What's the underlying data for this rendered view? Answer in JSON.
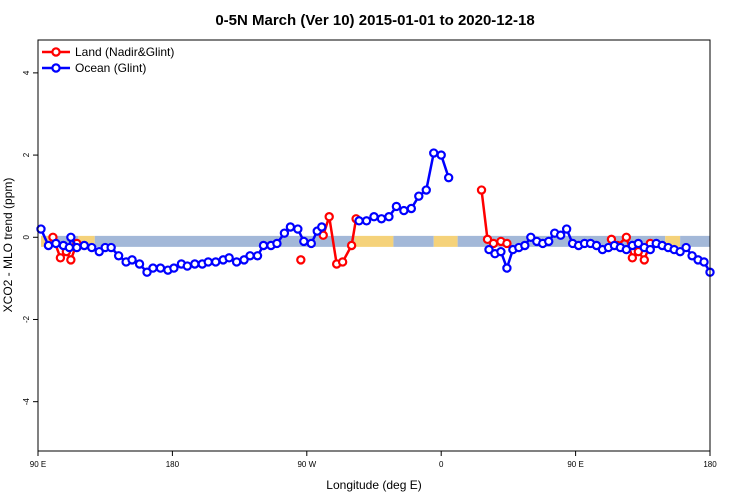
{
  "chart_data": {
    "type": "line",
    "title": "0-5N March (Ver 10)   2015-01-01 to 2020-12-18",
    "xlabel": "Longitude (deg E)",
    "ylabel": "XCO2 - MLO trend (ppm)",
    "x_ticks": [
      {
        "value": 90,
        "label": "90 E"
      },
      {
        "value": 180,
        "label": "180"
      },
      {
        "value": 270,
        "label": "90 W"
      },
      {
        "value": 360,
        "label": "0"
      },
      {
        "value": 450,
        "label": "90 E"
      },
      {
        "value": 540,
        "label": "180"
      }
    ],
    "y_ticks": [
      -4,
      -2,
      0,
      2,
      4
    ],
    "xlim": [
      90,
      540
    ],
    "ylim": [
      -5.2,
      4.8
    ],
    "legend_position": "top-left",
    "band": {
      "y": -0.1,
      "colors": {
        "ocean": "#a3b8d8",
        "land": "#f5d27a"
      },
      "segments": [
        {
          "type": "land",
          "x": [
            92,
            100
          ]
        },
        {
          "type": "ocean",
          "x": [
            100,
            117
          ]
        },
        {
          "type": "land",
          "x": [
            117,
            128
          ]
        },
        {
          "type": "ocean",
          "x": [
            128,
            302
          ]
        },
        {
          "type": "land",
          "x": [
            302,
            328
          ]
        },
        {
          "type": "ocean",
          "x": [
            328,
            355
          ]
        },
        {
          "type": "land",
          "x": [
            355,
            371
          ]
        },
        {
          "type": "ocean",
          "x": [
            371,
            510
          ]
        },
        {
          "type": "land",
          "x": [
            510,
            520
          ]
        },
        {
          "type": "ocean",
          "x": [
            520,
            540
          ]
        }
      ]
    },
    "series": [
      {
        "name": "Land (Nadir&Glint)",
        "color": "#ff0000",
        "segments": [
          [
            [
              100,
              0.0
            ],
            [
              105,
              -0.5
            ],
            [
              109,
              -0.35
            ],
            [
              112,
              -0.55
            ],
            [
              116,
              -0.15
            ]
          ],
          [
            [
              266,
              -0.55
            ]
          ],
          [
            [
              281,
              0.05
            ],
            [
              285,
              0.5
            ],
            [
              290,
              -0.65
            ],
            [
              294,
              -0.6
            ],
            [
              300,
              -0.2
            ],
            [
              303,
              0.45
            ]
          ],
          [
            [
              387,
              1.15
            ],
            [
              391,
              -0.05
            ],
            [
              395,
              -0.15
            ],
            [
              400,
              -0.1
            ],
            [
              404,
              -0.15
            ]
          ],
          [
            [
              474,
              -0.05
            ],
            [
              478,
              -0.2
            ],
            [
              484,
              0.0
            ],
            [
              488,
              -0.5
            ],
            [
              492,
              -0.35
            ],
            [
              496,
              -0.55
            ],
            [
              500,
              -0.15
            ]
          ]
        ]
      },
      {
        "name": "Ocean (Glint)",
        "color": "#0000ff",
        "segments": [
          [
            [
              92,
              0.2
            ],
            [
              97,
              -0.2
            ],
            [
              102,
              -0.15
            ],
            [
              107,
              -0.2
            ],
            [
              111,
              -0.25
            ],
            [
              112,
              0.0
            ],
            [
              116,
              -0.25
            ],
            [
              121,
              -0.2
            ],
            [
              126,
              -0.25
            ],
            [
              131,
              -0.35
            ],
            [
              135,
              -0.25
            ],
            [
              139,
              -0.25
            ],
            [
              144,
              -0.45
            ],
            [
              149,
              -0.6
            ],
            [
              153,
              -0.55
            ],
            [
              158,
              -0.65
            ],
            [
              163,
              -0.85
            ],
            [
              167,
              -0.75
            ],
            [
              172,
              -0.75
            ],
            [
              177,
              -0.8
            ],
            [
              181,
              -0.75
            ],
            [
              186,
              -0.65
            ],
            [
              190,
              -0.7
            ],
            [
              195,
              -0.65
            ],
            [
              200,
              -0.65
            ],
            [
              204,
              -0.6
            ],
            [
              209,
              -0.6
            ],
            [
              214,
              -0.55
            ],
            [
              218,
              -0.5
            ],
            [
              223,
              -0.6
            ],
            [
              228,
              -0.55
            ],
            [
              232,
              -0.45
            ],
            [
              237,
              -0.45
            ],
            [
              241,
              -0.2
            ],
            [
              246,
              -0.2
            ],
            [
              250,
              -0.15
            ],
            [
              255,
              0.1
            ],
            [
              259,
              0.25
            ],
            [
              264,
              0.2
            ],
            [
              268,
              -0.1
            ],
            [
              273,
              -0.15
            ],
            [
              277,
              0.15
            ],
            [
              280,
              0.25
            ]
          ],
          [
            [
              305,
              0.4
            ],
            [
              310,
              0.4
            ],
            [
              315,
              0.5
            ],
            [
              320,
              0.45
            ],
            [
              325,
              0.5
            ],
            [
              330,
              0.75
            ],
            [
              335,
              0.65
            ],
            [
              340,
              0.7
            ],
            [
              345,
              1.0
            ],
            [
              350,
              1.15
            ],
            [
              355,
              2.05
            ],
            [
              360,
              2.0
            ],
            [
              365,
              1.45
            ]
          ],
          [
            [
              392,
              -0.3
            ],
            [
              396,
              -0.4
            ],
            [
              400,
              -0.35
            ],
            [
              404,
              -0.75
            ],
            [
              408,
              -0.3
            ],
            [
              412,
              -0.25
            ],
            [
              416,
              -0.2
            ],
            [
              420,
              0.0
            ],
            [
              424,
              -0.1
            ],
            [
              428,
              -0.15
            ],
            [
              432,
              -0.1
            ],
            [
              436,
              0.1
            ],
            [
              440,
              0.05
            ],
            [
              444,
              0.2
            ],
            [
              448,
              -0.15
            ],
            [
              452,
              -0.2
            ],
            [
              456,
              -0.15
            ],
            [
              460,
              -0.15
            ],
            [
              464,
              -0.2
            ],
            [
              468,
              -0.3
            ],
            [
              472,
              -0.25
            ],
            [
              476,
              -0.2
            ],
            [
              480,
              -0.25
            ],
            [
              484,
              -0.3
            ],
            [
              488,
              -0.2
            ],
            [
              492,
              -0.15
            ],
            [
              496,
              -0.25
            ],
            [
              500,
              -0.3
            ],
            [
              504,
              -0.15
            ],
            [
              508,
              -0.2
            ],
            [
              512,
              -0.25
            ],
            [
              516,
              -0.3
            ],
            [
              520,
              -0.35
            ],
            [
              524,
              -0.25
            ],
            [
              528,
              -0.45
            ],
            [
              532,
              -0.55
            ],
            [
              536,
              -0.6
            ],
            [
              540,
              -0.85
            ]
          ]
        ]
      }
    ]
  }
}
